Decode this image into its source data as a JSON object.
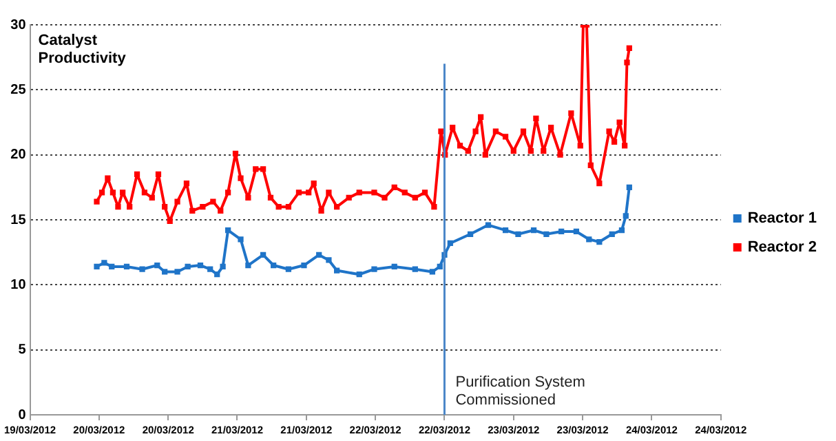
{
  "chart_data": {
    "type": "line",
    "title": "Catalyst Productivity",
    "xlim": [
      "2012-03-19T12:00",
      "2012-03-24T12:00"
    ],
    "xticks": [
      {
        "value": "2012-03-19T12:00",
        "label": "19/03/2012"
      },
      {
        "value": "2012-03-20T00:00",
        "label": "20/03/2012"
      },
      {
        "value": "2012-03-20T12:00",
        "label": "20/03/2012"
      },
      {
        "value": "2012-03-21T00:00",
        "label": "21/03/2012"
      },
      {
        "value": "2012-03-21T12:00",
        "label": "21/03/2012"
      },
      {
        "value": "2012-03-22T00:00",
        "label": "22/03/2012"
      },
      {
        "value": "2012-03-22T12:00",
        "label": "22/03/2012"
      },
      {
        "value": "2012-03-23T00:00",
        "label": "23/03/2012"
      },
      {
        "value": "2012-03-23T12:00",
        "label": "23/03/2012"
      },
      {
        "value": "2012-03-24T00:00",
        "label": "24/03/2012"
      },
      {
        "value": "2012-03-24T12:00",
        "label": "24/03/2012"
      }
    ],
    "ylim": [
      0,
      30
    ],
    "yticks": [
      0,
      5,
      10,
      15,
      20,
      25,
      30
    ],
    "grid": "y",
    "legend": "right",
    "marker": "square",
    "line_style": "solid",
    "series": [
      {
        "name": "Reactor 1",
        "color": "#1f74c8",
        "x": [
          "2012-03-19T23:36",
          "2012-03-20T00:54",
          "2012-03-20T02:12",
          "2012-03-20T04:48",
          "2012-03-20T07:30",
          "2012-03-20T10:06",
          "2012-03-20T11:24",
          "2012-03-20T13:36",
          "2012-03-20T15:24",
          "2012-03-20T17:36",
          "2012-03-20T19:18",
          "2012-03-20T20:30",
          "2012-03-20T21:30",
          "2012-03-20T22:24",
          "2012-03-21T00:36",
          "2012-03-21T01:54",
          "2012-03-21T04:30",
          "2012-03-21T06:18",
          "2012-03-21T08:54",
          "2012-03-21T11:36",
          "2012-03-21T14:12",
          "2012-03-21T15:54",
          "2012-03-21T17:18",
          "2012-03-21T21:12",
          "2012-03-21T23:48",
          "2012-03-22T03:18",
          "2012-03-22T06:54",
          "2012-03-22T09:54",
          "2012-03-22T11:12",
          "2012-03-22T12:00",
          "2012-03-22T13:00",
          "2012-03-22T16:30",
          "2012-03-22T19:36",
          "2012-03-22T22:36",
          "2012-03-23T00:48",
          "2012-03-23T03:30",
          "2012-03-23T05:42",
          "2012-03-23T08:18",
          "2012-03-23T10:54",
          "2012-03-23T13:06",
          "2012-03-23T14:54",
          "2012-03-23T17:06",
          "2012-03-23T18:48",
          "2012-03-23T19:30",
          "2012-03-23T20:06"
        ],
        "values": [
          11.4,
          11.7,
          11.4,
          11.4,
          11.2,
          11.5,
          11.0,
          11.0,
          11.4,
          11.5,
          11.2,
          10.8,
          11.4,
          14.2,
          13.5,
          11.5,
          12.3,
          11.5,
          11.2,
          11.5,
          12.3,
          11.9,
          11.1,
          10.8,
          11.2,
          11.4,
          11.2,
          11.0,
          11.4,
          12.3,
          13.2,
          13.9,
          14.6,
          14.2,
          13.9,
          14.2,
          13.9,
          14.1,
          14.1,
          13.5,
          13.3,
          13.9,
          14.2,
          15.3,
          17.5
        ]
      },
      {
        "name": "Reactor 2",
        "color": "#ff0000",
        "x": [
          "2012-03-19T23:36",
          "2012-03-20T00:30",
          "2012-03-20T01:30",
          "2012-03-20T02:24",
          "2012-03-20T03:18",
          "2012-03-20T04:06",
          "2012-03-20T05:18",
          "2012-03-20T06:36",
          "2012-03-20T07:54",
          "2012-03-20T09:12",
          "2012-03-20T10:18",
          "2012-03-20T11:24",
          "2012-03-20T12:18",
          "2012-03-20T13:36",
          "2012-03-20T15:12",
          "2012-03-20T16:12",
          "2012-03-20T18:00",
          "2012-03-20T19:48",
          "2012-03-20T21:06",
          "2012-03-20T22:24",
          "2012-03-20T23:42",
          "2012-03-21T00:36",
          "2012-03-21T01:54",
          "2012-03-21T03:12",
          "2012-03-21T04:30",
          "2012-03-21T05:48",
          "2012-03-21T07:12",
          "2012-03-21T08:54",
          "2012-03-21T10:42",
          "2012-03-21T12:24",
          "2012-03-21T13:18",
          "2012-03-21T14:36",
          "2012-03-21T15:54",
          "2012-03-21T17:18",
          "2012-03-21T19:24",
          "2012-03-21T21:12",
          "2012-03-21T23:48",
          "2012-03-22T01:36",
          "2012-03-22T03:18",
          "2012-03-22T05:06",
          "2012-03-22T06:54",
          "2012-03-22T08:36",
          "2012-03-22T10:12",
          "2012-03-22T11:24",
          "2012-03-22T12:06",
          "2012-03-22T13:24",
          "2012-03-22T14:42",
          "2012-03-22T16:06",
          "2012-03-22T17:24",
          "2012-03-22T18:18",
          "2012-03-22T19:06",
          "2012-03-22T20:54",
          "2012-03-22T22:36",
          "2012-03-23T00:00",
          "2012-03-23T01:42",
          "2012-03-23T03:00",
          "2012-03-23T03:54",
          "2012-03-23T05:12",
          "2012-03-23T06:30",
          "2012-03-23T08:06",
          "2012-03-23T10:00",
          "2012-03-23T11:36",
          "2012-03-23T12:06",
          "2012-03-23T12:42",
          "2012-03-23T13:24",
          "2012-03-23T14:54",
          "2012-03-23T16:36",
          "2012-03-23T17:30",
          "2012-03-23T18:24",
          "2012-03-23T19:18",
          "2012-03-23T19:42",
          "2012-03-23T20:06"
        ],
        "values": [
          16.4,
          17.1,
          18.2,
          17.1,
          16.0,
          17.1,
          16.0,
          18.5,
          17.1,
          16.7,
          18.5,
          16.0,
          14.9,
          16.4,
          17.8,
          15.7,
          16.0,
          16.4,
          15.7,
          17.1,
          20.1,
          18.2,
          16.7,
          18.9,
          18.9,
          16.7,
          16.0,
          16.0,
          17.1,
          17.1,
          17.8,
          15.7,
          17.1,
          16.0,
          16.7,
          17.1,
          17.1,
          16.7,
          17.5,
          17.1,
          16.7,
          17.1,
          16.0,
          21.8,
          20.0,
          22.1,
          20.7,
          20.3,
          21.8,
          22.9,
          20.0,
          21.8,
          21.4,
          20.3,
          21.8,
          20.3,
          22.8,
          20.3,
          22.1,
          20.0,
          23.2,
          20.7,
          30,
          30,
          19.2,
          17.8,
          21.8,
          21.0,
          22.5,
          20.7,
          27.1,
          28.2
        ]
      }
    ],
    "ref_lines": [
      {
        "axis": "x",
        "value": "2012-03-22T12:00",
        "label": "Purification System Commissioned",
        "color": "#4a86c8"
      }
    ]
  }
}
